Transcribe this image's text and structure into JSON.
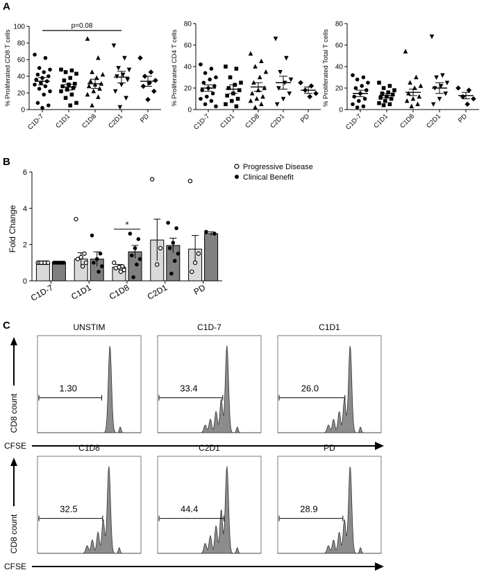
{
  "chart_data": [
    {
      "panel": "A",
      "type": "scatter",
      "title": "",
      "ylabel": "% Proliferated CD8  T cells",
      "xlabel": "",
      "ylim": [
        0,
        100
      ],
      "yticks": [
        0,
        20,
        40,
        60,
        80,
        100
      ],
      "categories": [
        "C1D-7",
        "C1D1",
        "C1D8",
        "C2D1",
        "PD"
      ],
      "markers": [
        "circle",
        "square",
        "triangle",
        "triangle-down",
        "diamond"
      ],
      "points": [
        [
          66,
          62,
          50,
          48,
          45,
          42,
          40,
          38,
          36,
          34,
          32,
          30,
          28,
          25,
          22,
          18,
          8,
          5,
          2
        ],
        [
          48,
          47,
          45,
          43,
          38,
          35,
          31,
          30,
          28,
          26,
          24,
          22,
          18,
          14,
          8,
          5
        ],
        [
          85,
          62,
          45,
          42,
          38,
          34,
          31,
          30,
          28,
          25,
          22,
          18,
          15,
          5
        ],
        [
          77,
          62,
          50,
          48,
          42,
          40,
          36,
          30,
          22,
          14,
          3
        ],
        [
          62,
          45,
          40,
          35,
          32,
          28,
          22,
          12
        ]
      ],
      "means": [
        34,
        27,
        31,
        39,
        34
      ],
      "sems": [
        4.5,
        3.5,
        5.5,
        7,
        6
      ],
      "annotation": {
        "text": "p=0.08",
        "from": "C1D-7",
        "to": "C2D1",
        "y": 95
      }
    },
    {
      "panel": "A",
      "type": "scatter",
      "title": "",
      "ylabel": "% Proliferated CD4  T cells",
      "xlabel": "",
      "ylim": [
        0,
        80
      ],
      "yticks": [
        0,
        20,
        40,
        60,
        80
      ],
      "categories": [
        "C1D-7",
        "C1D1",
        "C1D8",
        "C2D1",
        "PD"
      ],
      "markers": [
        "circle",
        "square",
        "triangle",
        "triangle-down",
        "diamond"
      ],
      "points": [
        [
          42,
          38,
          34,
          30,
          28,
          25,
          22,
          20,
          18,
          15,
          12,
          10,
          8,
          5,
          3
        ],
        [
          40,
          38,
          30,
          25,
          23,
          20,
          18,
          15,
          13,
          10,
          8,
          5,
          3
        ],
        [
          52,
          45,
          40,
          35,
          30,
          25,
          20,
          18,
          15,
          12,
          10,
          8,
          5,
          2
        ],
        [
          66,
          48,
          35,
          28,
          25,
          20,
          15,
          10,
          5
        ],
        [
          25,
          22,
          18,
          15,
          12
        ]
      ],
      "means": [
        20,
        19,
        21,
        25,
        18
      ],
      "sems": [
        3,
        4,
        4,
        6,
        3
      ]
    },
    {
      "panel": "A",
      "type": "scatter",
      "title": "",
      "ylabel": "% Proliferated Total T cells",
      "xlabel": "",
      "ylim": [
        0,
        80
      ],
      "yticks": [
        0,
        20,
        40,
        60,
        80
      ],
      "categories": [
        "C1D-7",
        "C1D1",
        "C1D8",
        "C2D1",
        "PD"
      ],
      "markers": [
        "circle",
        "square",
        "triangle",
        "triangle-down",
        "diamond"
      ],
      "points": [
        [
          32,
          30,
          28,
          25,
          22,
          20,
          18,
          15,
          12,
          10,
          8,
          5,
          3,
          2
        ],
        [
          25,
          22,
          20,
          18,
          16,
          15,
          14,
          12,
          11,
          10,
          8,
          6,
          5,
          4
        ],
        [
          54,
          30,
          25,
          22,
          20,
          15,
          12,
          10,
          8,
          5,
          3
        ],
        [
          68,
          32,
          30,
          25,
          22,
          20,
          15,
          10,
          5
        ],
        [
          20,
          18,
          12,
          10,
          5
        ]
      ],
      "means": [
        15,
        13,
        16,
        20,
        13
      ],
      "sems": [
        3,
        2,
        3,
        5,
        3
      ]
    },
    {
      "panel": "B",
      "type": "bar",
      "title": "",
      "ylabel": "Fold Change",
      "xlabel": "",
      "ylim": [
        0,
        6
      ],
      "yticks": [
        0,
        2,
        4,
        6
      ],
      "categories": [
        "C1D-7",
        "C1D1",
        "C1D8",
        "C2D1",
        "PD"
      ],
      "series": [
        {
          "name": "Progressive Disease",
          "marker": "open-circle",
          "values": [
            1.0,
            1.2,
            0.75,
            2.25,
            1.75
          ],
          "errors": [
            0.03,
            0.35,
            0.15,
            1.15,
            0.75
          ],
          "points": [
            [
              1,
              1,
              1,
              1,
              1,
              1,
              1
            ],
            [
              3.4,
              1.5,
              1.3,
              1.2,
              1.0,
              0.8
            ],
            [
              1.0,
              0.8,
              0.75,
              0.7,
              0.6,
              0.5
            ],
            [
              5.6,
              1.8,
              0.9
            ],
            [
              5.5,
              1.5,
              1.0,
              0.5
            ]
          ]
        },
        {
          "name": "Clinical Benefit",
          "marker": "filled-circle",
          "values": [
            1.0,
            1.2,
            1.6,
            1.95,
            2.6
          ],
          "errors": [
            0.02,
            0.4,
            0.35,
            0.4,
            0.1
          ],
          "points": [
            [
              1,
              1,
              1,
              1,
              1,
              1,
              1
            ],
            [
              2.5,
              1.5,
              1.2,
              1.0,
              0.8,
              0.5
            ],
            [
              2.6,
              2.3,
              1.8,
              1.4,
              1.2,
              0.9,
              0.2
            ],
            [
              3.2,
              2.9,
              2.1,
              1.8,
              1.5,
              1.1,
              0.4
            ],
            [
              2.7,
              2.6
            ]
          ]
        }
      ],
      "legend": [
        "Progressive Disease",
        "Clinical Benefit"
      ],
      "legend_position": "top-right",
      "annotation": {
        "text": "*",
        "category": "C1D8"
      }
    },
    {
      "panel": "C",
      "type": "histogram",
      "title": "",
      "ylabel": "CD8 count",
      "xlabel": "CFSE",
      "plots": [
        {
          "title": "UNSTIM",
          "gate_value": "1.30"
        },
        {
          "title": "C1D-7",
          "gate_value": "33.4"
        },
        {
          "title": "C1D1",
          "gate_value": "26.0"
        },
        {
          "title": "C1D8",
          "gate_value": "32.5"
        },
        {
          "title": "C2D1",
          "gate_value": "44.4"
        },
        {
          "title": "PD",
          "gate_value": "28.9"
        }
      ]
    }
  ],
  "panel_labels": [
    "A",
    "B",
    "C"
  ],
  "colors": {
    "axis": "#000000",
    "marker": "#000000",
    "bar_progressive": "#d9d9d9",
    "bar_clinical": "#808080",
    "histogram_fill": "#8c8c8c",
    "histogram_stroke": "#333333"
  }
}
